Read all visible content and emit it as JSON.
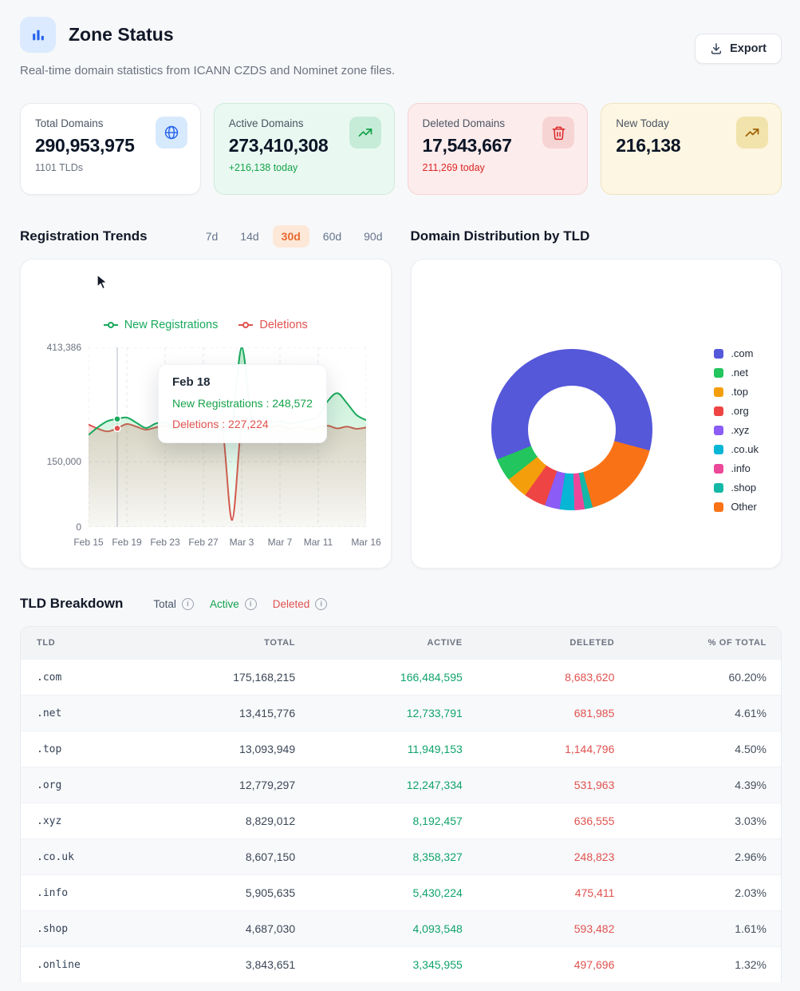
{
  "header": {
    "title": "Zone Status",
    "subtitle": "Real-time domain statistics from ICANN CZDS and Nominet zone files.",
    "export_label": "Export"
  },
  "stats": {
    "cards": [
      {
        "label": "Total Domains",
        "value": "290,953,975",
        "sub": "1101 TLDs",
        "icon": "globe-icon"
      },
      {
        "label": "Active Domains",
        "value": "273,410,308",
        "sub": "+216,138 today",
        "icon": "trending-up-icon"
      },
      {
        "label": "Deleted Domains",
        "value": "17,543,667",
        "sub": "211,269 today",
        "icon": "trash-icon"
      },
      {
        "label": "New Today",
        "value": "216,138",
        "sub": "",
        "icon": "trending-up-icon"
      }
    ]
  },
  "trends": {
    "title": "Registration Trends",
    "ranges": [
      "7d",
      "14d",
      "30d",
      "60d",
      "90d"
    ],
    "selected_range": "30d",
    "tooltip": {
      "date": "Feb 18",
      "registrations_label": "New Registrations : 248,572",
      "deletions_label": "Deletions : 227,224"
    }
  },
  "distribution": {
    "title": "Domain Distribution by TLD"
  },
  "tld_breakdown": {
    "title": "TLD Breakdown",
    "legend": [
      {
        "label": "Total",
        "color": "#475569"
      },
      {
        "label": "Active",
        "color": "#12a150"
      },
      {
        "label": "Deleted",
        "color": "#e0524f"
      }
    ]
  },
  "table": {
    "columns": [
      "TLD",
      "TOTAL",
      "ACTIVE",
      "DELETED",
      "% OF TOTAL"
    ],
    "rows": [
      [
        ".com",
        "175,168,215",
        "166,484,595",
        "8,683,620",
        "60.20%"
      ],
      [
        ".net",
        "13,415,776",
        "12,733,791",
        "681,985",
        "4.61%"
      ],
      [
        ".top",
        "13,093,949",
        "11,949,153",
        "1,144,796",
        "4.50%"
      ],
      [
        ".org",
        "12,779,297",
        "12,247,334",
        "531,963",
        "4.39%"
      ],
      [
        ".xyz",
        "8,829,012",
        "8,192,457",
        "636,555",
        "3.03%"
      ],
      [
        ".co.uk",
        "8,607,150",
        "8,358,327",
        "248,823",
        "2.96%"
      ],
      [
        ".info",
        "5,905,635",
        "5,430,224",
        "475,411",
        "2.03%"
      ],
      [
        ".shop",
        "4,687,030",
        "4,093,548",
        "593,482",
        "1.61%"
      ],
      [
        ".online",
        "3,843,651",
        "3,345,955",
        "497,696",
        "1.32%"
      ]
    ]
  },
  "chart_data": [
    {
      "type": "line",
      "title": "Registration Trends",
      "x": [
        "Feb 15",
        "Feb 16",
        "Feb 17",
        "Feb 18",
        "Feb 19",
        "Feb 20",
        "Feb 21",
        "Feb 22",
        "Feb 23",
        "Feb 24",
        "Feb 25",
        "Feb 26",
        "Feb 27",
        "Feb 28",
        "Mar 1",
        "Mar 2",
        "Mar 3",
        "Mar 4",
        "Mar 5",
        "Mar 6",
        "Mar 7",
        "Mar 8",
        "Mar 9",
        "Mar 10",
        "Mar 11",
        "Mar 12",
        "Mar 13",
        "Mar 14",
        "Mar 15",
        "Mar 16"
      ],
      "series": [
        {
          "name": "New Registrations",
          "color": "#18a95c",
          "values": [
            212000,
            230000,
            244000,
            248572,
            252000,
            240000,
            228000,
            238000,
            241000,
            229000,
            233000,
            240000,
            236000,
            230000,
            234000,
            238000,
            413386,
            258000,
            246000,
            240000,
            244000,
            238000,
            242000,
            246000,
            255000,
            290000,
            308000,
            285000,
            258000,
            246000
          ]
        },
        {
          "name": "Deletions",
          "color": "#e0524f",
          "values": [
            236000,
            226000,
            220000,
            227224,
            237000,
            231000,
            224000,
            229000,
            233000,
            226000,
            230000,
            224000,
            229000,
            222000,
            226000,
            16000,
            238000,
            230000,
            224000,
            229000,
            233000,
            226000,
            230000,
            225000,
            229000,
            233000,
            227000,
            231000,
            226000,
            229000
          ]
        }
      ],
      "ylim": [
        0,
        413386
      ],
      "yticks": [
        {
          "value": 413386,
          "label": "413,386"
        },
        {
          "value": 150000,
          "label": "150,000"
        },
        {
          "value": 0,
          "label": "0"
        }
      ],
      "xticks": [
        {
          "index": 0,
          "label": "Feb 15"
        },
        {
          "index": 4,
          "label": "Feb 19"
        },
        {
          "index": 8,
          "label": "Feb 23"
        },
        {
          "index": 12,
          "label": "Feb 27"
        },
        {
          "index": 16,
          "label": "Mar 3"
        },
        {
          "index": 20,
          "label": "Mar 7"
        },
        {
          "index": 24,
          "label": "Mar 11"
        },
        {
          "index": 29,
          "label": "Mar 16"
        }
      ],
      "hover_index": 3,
      "hover": {
        "date": "Feb 18",
        "new_registrations": 248572,
        "deletions": 227224
      },
      "grid": true,
      "legend_position": "top"
    },
    {
      "type": "pie",
      "title": "Domain Distribution by TLD",
      "labels": [
        ".com",
        ".net",
        ".top",
        ".org",
        ".xyz",
        ".co.uk",
        ".info",
        ".shop",
        "Other"
      ],
      "values": [
        60.2,
        4.61,
        4.5,
        4.39,
        3.03,
        2.96,
        2.03,
        1.61,
        16.67
      ],
      "colors": [
        "#5558d9",
        "#22c55e",
        "#f59e0b",
        "#ef4444",
        "#8b5cf6",
        "#06b6d4",
        "#ec4899",
        "#14b8a6",
        "#f97316"
      ],
      "start_angle_deg": 105,
      "direction": "counterclockwise",
      "inner_radius_pct": 54,
      "legend_position": "right"
    }
  ]
}
